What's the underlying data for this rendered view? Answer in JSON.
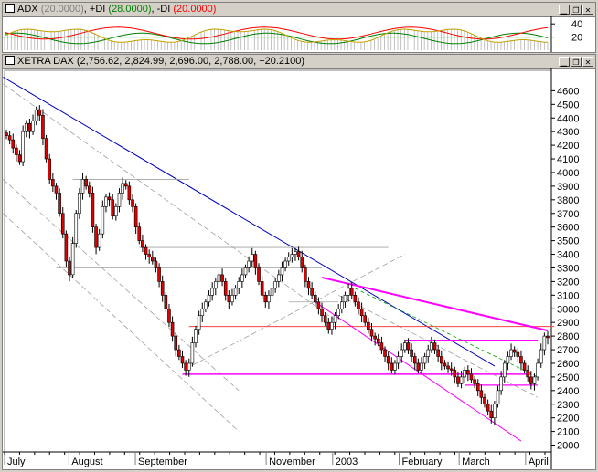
{
  "indicator": {
    "label": "ADX",
    "adx_param": "(20.0000)",
    "pdi_label": "+DI",
    "pdi_param": "(28.0000)",
    "mdi_label": "-DI",
    "mdi_param": "(20.0000)",
    "colors": {
      "adx": "#808080",
      "pdi": "#008000",
      "mdi": "#ff0000"
    },
    "axis_ticks": [
      40,
      20
    ]
  },
  "main": {
    "name": "XETRA DAX",
    "ohlc_text": "(2,756.62, 2,824.99, 2,696.00, 2,788.00, +20.2100)"
  },
  "window_buttons": [
    "minimize-icon",
    "restore-icon",
    "close-icon"
  ],
  "chart_data": {
    "type": "candlestick",
    "ylim": [
      1950,
      4750
    ],
    "y_ticks": [
      2000,
      2100,
      2200,
      2300,
      2400,
      2500,
      2600,
      2700,
      2800,
      2900,
      3000,
      3100,
      3200,
      3300,
      3400,
      3500,
      3600,
      3700,
      3800,
      3900,
      4000,
      4100,
      4200,
      4300,
      4400,
      4500,
      4600
    ],
    "months": [
      {
        "label": "July",
        "day": 0
      },
      {
        "label": "August",
        "day": 30
      },
      {
        "label": "September",
        "day": 61
      },
      {
        "label": "November",
        "day": 122
      },
      {
        "label": "2003",
        "day": 153
      },
      {
        "label": "February",
        "day": 184
      },
      {
        "label": "March",
        "day": 212
      },
      {
        "label": "April",
        "day": 243
      }
    ],
    "closes": [
      4270,
      4240,
      4180,
      4130,
      4080,
      4300,
      4360,
      4300,
      4380,
      4460,
      4420,
      4250,
      4100,
      3950,
      3900,
      3850,
      3700,
      3550,
      3350,
      3250,
      3480,
      3700,
      3850,
      3950,
      3900,
      3850,
      3600,
      3450,
      3550,
      3750,
      3820,
      3800,
      3680,
      3750,
      3850,
      3920,
      3900,
      3800,
      3750,
      3600,
      3500,
      3450,
      3400,
      3380,
      3350,
      3300,
      3200,
      3100,
      3000,
      2900,
      2800,
      2700,
      2650,
      2600,
      2550,
      2600,
      2750,
      2850,
      2950,
      3000,
      3050,
      3100,
      3150,
      3200,
      3250,
      3200,
      3100,
      3050,
      3100,
      3150,
      3200,
      3250,
      3300,
      3350,
      3400,
      3300,
      3200,
      3100,
      3050,
      3100,
      3150,
      3200,
      3250,
      3300,
      3350,
      3380,
      3400,
      3420,
      3380,
      3300,
      3200,
      3150,
      3100,
      3050,
      3000,
      2950,
      2900,
      2850,
      2900,
      2950,
      3000,
      3050,
      3100,
      3150,
      3100,
      3050,
      3000,
      2950,
      2900,
      2850,
      2800,
      2780,
      2750,
      2700,
      2650,
      2600,
      2550,
      2600,
      2650,
      2700,
      2750,
      2700,
      2650,
      2600,
      2550,
      2600,
      2650,
      2700,
      2750,
      2700,
      2650,
      2600,
      2580,
      2560,
      2550,
      2500,
      2450,
      2500,
      2550,
      2520,
      2480,
      2450,
      2400,
      2350,
      2300,
      2250,
      2200,
      2300,
      2400,
      2500,
      2600,
      2650,
      2700,
      2680,
      2650,
      2600,
      2550,
      2500,
      2450,
      2500,
      2600,
      2700,
      2800,
      2788
    ]
  }
}
